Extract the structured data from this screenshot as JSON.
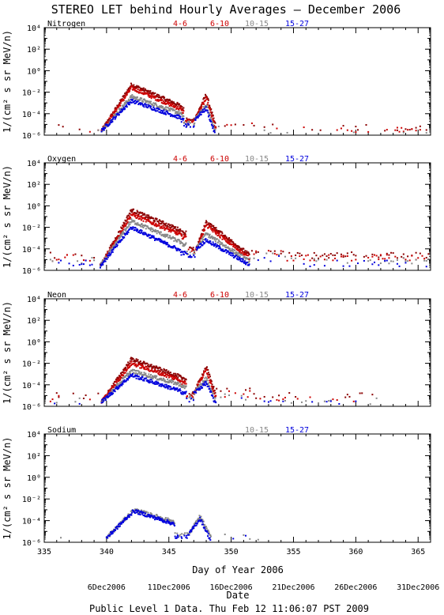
{
  "title": "STEREO LET behind Hourly Averages – December 2006",
  "x_axis_label": "Day of Year 2006",
  "date_axis_label": "Date",
  "y_axis_label": "1/(cm² s sr MeV/n)",
  "footer": "Public Level 1 Data. Thu Feb 12 11:06:07 PST 2009",
  "x_ticks": [
    "335",
    "340",
    "345",
    "350",
    "355",
    "360",
    "365"
  ],
  "y_ticks": [
    "10⁻⁶",
    "10⁻⁴",
    "10⁻²",
    "10⁰",
    "10²",
    "10⁴"
  ],
  "date_labels": [
    {
      "text": "6Dec2006",
      "doy": 340
    },
    {
      "text": "11Dec2006",
      "doy": 345
    },
    {
      "text": "16Dec2006",
      "doy": 350
    },
    {
      "text": "21Dec2006",
      "doy": 355
    },
    {
      "text": "26Dec2006",
      "doy": 360
    },
    {
      "text": "31Dec2006",
      "doy": 365
    }
  ],
  "colors": {
    "4-6": "#cc0000",
    "6-10": "#cc0000",
    "10-15": "#888888",
    "15-27": "#0000dd",
    "4-6-dark": "#8b0000"
  },
  "chart_data": [
    {
      "type": "scatter",
      "element": "Nitrogen",
      "legend": [
        "4-6",
        "6-10",
        "10-15",
        "15-27"
      ],
      "xlim": [
        335,
        366
      ],
      "ylim_log10": [
        -6,
        4
      ],
      "log_y": true,
      "profile": {
        "start": 339.6,
        "peak_day": 342.0,
        "peak": [
          -1.3,
          -1.6,
          -2.4,
          -2.8
        ],
        "decay_to": 346.0,
        "decay_val": [
          -3.3,
          -3.6,
          -4.0,
          -4.4
        ],
        "dip": [
          346.2,
          347.1,
          -4.5
        ],
        "bump_peak_day": 348.0,
        "bump_peak": [
          -2.2,
          -2.6,
          -3.2,
          -3.5
        ],
        "end": 348.8,
        "tail_end": 366,
        "tail_level": -5.3,
        "tail_density": 0.18
      }
    },
    {
      "type": "scatter",
      "element": "Oxygen",
      "legend": [
        "4-6",
        "6-10",
        "10-15",
        "15-27"
      ],
      "xlim": [
        335,
        366
      ],
      "ylim_log10": [
        -6,
        4
      ],
      "log_y": true,
      "profile": {
        "start": 339.5,
        "peak_day": 342.0,
        "peak": [
          -0.4,
          -0.8,
          -1.4,
          -2.0
        ],
        "decay_to": 346.0,
        "decay_val": [
          -2.3,
          -2.7,
          -3.4,
          -4.2
        ],
        "dip": [
          346.4,
          347.2,
          -4.0
        ],
        "bump_peak_day": 348.0,
        "bump_peak": [
          -1.5,
          -1.8,
          -2.6,
          -3.2
        ],
        "end": 351.5,
        "tail_end": 366,
        "tail_level": -4.6,
        "tail_density": 0.55
      }
    },
    {
      "type": "scatter",
      "element": "Neon",
      "legend": [
        "4-6",
        "6-10",
        "10-15",
        "15-27"
      ],
      "xlim": [
        335,
        366
      ],
      "ylim_log10": [
        -6,
        4
      ],
      "log_y": true,
      "profile": {
        "start": 339.6,
        "peak_day": 342.0,
        "peak": [
          -1.6,
          -2.0,
          -2.7,
          -3.1
        ],
        "decay_to": 346.0,
        "decay_val": [
          -3.3,
          -3.6,
          -4.0,
          -4.6
        ],
        "dip": [
          346.4,
          347.0,
          -4.8
        ],
        "bump_peak_day": 348.0,
        "bump_peak": [
          -2.3,
          -2.6,
          -3.4,
          -3.8
        ],
        "end": 348.8,
        "tail_end": 362,
        "tail_level": -5.0,
        "tail_density": 0.25
      }
    },
    {
      "type": "scatter",
      "element": "Sodium",
      "legend": [
        "10-15",
        "15-27"
      ],
      "xlim": [
        335,
        366
      ],
      "ylim_log10": [
        -6,
        4
      ],
      "log_y": true,
      "profile": {
        "start": 340.0,
        "peak_day": 342.2,
        "peak": [
          -3.0,
          -3.1
        ],
        "decay_to": 345.4,
        "decay_val": [
          -4.1,
          -4.3
        ],
        "dip": [
          345.5,
          346.6,
          -5.3
        ],
        "bump_peak_day": 347.5,
        "bump_peak": [
          -3.6,
          -3.8
        ],
        "end": 348.4,
        "tail_end": 354.5,
        "tail_level": -5.6,
        "tail_density": 0.08
      }
    }
  ]
}
